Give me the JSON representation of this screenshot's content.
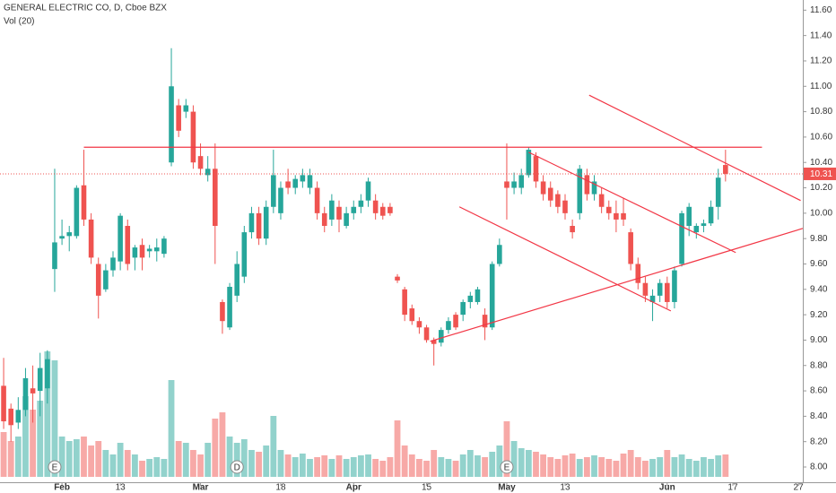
{
  "chart_data": {
    "type": "candlestick",
    "title": "GENERAL ELECTRIC CO, D, Cboe BZX",
    "up_color": "#26a69a",
    "down_color": "#ef5350",
    "line_color": "#f23645",
    "open": [
      8.64,
      8.46,
      8.35,
      8.45,
      8.62,
      8.6,
      8.62,
      9.56,
      9.8,
      9.82,
      9.82,
      10.22,
      9.95,
      9.6,
      9.4,
      9.55,
      9.62,
      9.9,
      9.65,
      9.75,
      9.7,
      9.7,
      9.68,
      10.4,
      10.85,
      10.8,
      10.8,
      10.45,
      10.3,
      10.35,
      9.3,
      9.1,
      9.35,
      9.5,
      9.85,
      10.0,
      9.8,
      10.05,
      10.0,
      10.25,
      10.2,
      10.25,
      10.2,
      10.2,
      10.0,
      9.95,
      10.05,
      9.9,
      10.0,
      10.05,
      10.1,
      10.1,
      10.05,
      10.05,
      9.5,
      9.4,
      9.25,
      9.15,
      9.1,
      9.0,
      8.98,
      9.08,
      9.2,
      9.2,
      9.3,
      9.3,
      9.2,
      9.1,
      9.6,
      10.25,
      10.2,
      10.2,
      10.3,
      10.45,
      10.25,
      10.2,
      10.15,
      10.1,
      9.9,
      10.0,
      10.3,
      10.15,
      10.15,
      10.05,
      10.0,
      10.0,
      9.85,
      9.6,
      9.45,
      9.3,
      9.35,
      9.45,
      9.3,
      9.6,
      9.9,
      9.85,
      9.9,
      9.92,
      10.05,
      10.38
    ],
    "high": [
      8.86,
      8.5,
      8.55,
      8.78,
      8.8,
      8.9,
      8.92,
      10.35,
      9.95,
      9.9,
      10.22,
      10.5,
      10.0,
      9.65,
      9.6,
      9.7,
      10.0,
      9.95,
      9.75,
      9.8,
      9.75,
      9.8,
      9.82,
      11.3,
      10.9,
      10.9,
      10.85,
      10.55,
      10.45,
      10.55,
      9.32,
      9.45,
      9.7,
      9.9,
      10.05,
      10.05,
      10.1,
      10.5,
      10.25,
      10.35,
      10.3,
      10.35,
      10.35,
      10.25,
      10.05,
      10.15,
      10.1,
      10.05,
      10.1,
      10.15,
      10.28,
      10.15,
      10.08,
      10.08,
      9.52,
      9.42,
      9.28,
      9.18,
      9.12,
      9.02,
      9.1,
      9.18,
      9.22,
      9.32,
      9.38,
      9.42,
      9.25,
      9.62,
      9.8,
      10.55,
      10.32,
      10.35,
      10.52,
      10.48,
      10.3,
      10.25,
      10.18,
      10.15,
      9.95,
      10.38,
      10.35,
      10.3,
      10.2,
      10.1,
      10.1,
      10.12,
      9.88,
      9.65,
      9.5,
      9.4,
      9.48,
      9.5,
      9.58,
      10.02,
      10.08,
      9.92,
      9.95,
      10.1,
      10.35,
      10.5
    ],
    "low": [
      8.3,
      8.2,
      8.3,
      8.4,
      8.35,
      8.4,
      8.5,
      9.38,
      9.75,
      9.7,
      9.8,
      9.9,
      9.6,
      9.17,
      9.38,
      9.5,
      9.55,
      9.55,
      9.55,
      9.55,
      9.65,
      9.62,
      9.65,
      10.37,
      10.6,
      10.75,
      10.35,
      10.3,
      10.25,
      9.6,
      9.05,
      9.08,
      9.3,
      9.45,
      9.8,
      9.75,
      9.75,
      10.0,
      9.95,
      10.15,
      10.15,
      10.2,
      10.15,
      9.95,
      9.85,
      9.9,
      9.85,
      9.88,
      9.95,
      10.0,
      10.05,
      9.95,
      9.95,
      9.98,
      9.45,
      9.15,
      9.12,
      9.05,
      8.98,
      8.8,
      8.95,
      9.05,
      9.08,
      9.15,
      9.25,
      9.28,
      9.0,
      9.08,
      9.58,
      9.95,
      10.15,
      10.15,
      10.28,
      10.2,
      10.1,
      10.05,
      10.0,
      9.95,
      9.8,
      9.95,
      10.1,
      10.1,
      10.0,
      9.95,
      9.85,
      9.9,
      9.55,
      9.4,
      9.3,
      9.15,
      9.3,
      9.25,
      9.25,
      9.58,
      9.82,
      9.8,
      9.85,
      9.9,
      9.95,
      10.25
    ],
    "close": [
      8.36,
      8.33,
      8.45,
      8.7,
      8.58,
      8.78,
      8.85,
      9.77,
      9.82,
      9.85,
      10.2,
      9.95,
      9.65,
      9.35,
      9.55,
      9.65,
      9.98,
      9.6,
      9.73,
      9.65,
      9.72,
      9.73,
      9.8,
      11.0,
      10.65,
      10.85,
      10.4,
      10.35,
      10.35,
      9.9,
      9.15,
      9.42,
      9.6,
      9.85,
      10.0,
      9.8,
      10.05,
      10.3,
      10.2,
      10.2,
      10.27,
      10.3,
      10.3,
      10.0,
      9.9,
      10.1,
      9.95,
      10.0,
      10.05,
      10.1,
      10.25,
      10.0,
      9.98,
      10.0,
      9.47,
      9.2,
      9.15,
      9.1,
      9.0,
      8.97,
      9.08,
      9.15,
      9.1,
      9.3,
      9.35,
      9.4,
      9.1,
      9.6,
      9.75,
      10.2,
      10.25,
      10.3,
      10.5,
      10.25,
      10.15,
      10.1,
      10.05,
      10.0,
      9.85,
      10.35,
      10.15,
      10.25,
      10.05,
      10.0,
      9.95,
      9.95,
      9.6,
      9.45,
      9.35,
      9.35,
      9.45,
      9.3,
      9.55,
      10.0,
      10.05,
      9.9,
      9.92,
      10.05,
      10.28,
      10.31
    ],
    "volume": {
      "name": "Vol (20)",
      "values": [
        50,
        40,
        45,
        90,
        75,
        85,
        140,
        130,
        45,
        40,
        42,
        45,
        35,
        40,
        30,
        25,
        38,
        30,
        25,
        18,
        20,
        22,
        20,
        108,
        40,
        38,
        30,
        25,
        38,
        65,
        72,
        45,
        38,
        42,
        30,
        28,
        35,
        68,
        30,
        25,
        22,
        26,
        20,
        22,
        24,
        20,
        24,
        20,
        22,
        24,
        25,
        20,
        18,
        22,
        63,
        35,
        25,
        20,
        18,
        30,
        22,
        20,
        18,
        25,
        30,
        24,
        22,
        28,
        35,
        62,
        40,
        32,
        30,
        28,
        25,
        22,
        20,
        24,
        26,
        20,
        22,
        24,
        22,
        20,
        18,
        26,
        30,
        22,
        18,
        20,
        22,
        30,
        22,
        25,
        20,
        18,
        22,
        20,
        24,
        25
      ],
      "vlim": [
        0,
        150
      ]
    },
    "xlim": [
      -0.5,
      109.6
    ],
    "xticks": [
      {
        "value": 8,
        "label": "Feb"
      },
      {
        "value": 16,
        "label": "13"
      },
      {
        "value": 27,
        "label": "Mar"
      },
      {
        "value": 38,
        "label": "18"
      },
      {
        "value": 48,
        "label": "Apr"
      },
      {
        "value": 58,
        "label": "15"
      },
      {
        "value": 69,
        "label": "May"
      },
      {
        "value": 77,
        "label": "13"
      },
      {
        "value": 91,
        "label": "Jun"
      },
      {
        "value": 100,
        "label": "17"
      },
      {
        "value": 109,
        "label": "27"
      }
    ],
    "ylim": [
      7.88,
      11.68
    ],
    "yticks": [
      {
        "value": 8,
        "label": "8.00"
      },
      {
        "value": 8.2,
        "label": "8.20"
      },
      {
        "value": 8.4,
        "label": "8.40"
      },
      {
        "value": 8.6,
        "label": "8.60"
      },
      {
        "value": 8.8,
        "label": "8.80"
      },
      {
        "value": 9,
        "label": "9.00"
      },
      {
        "value": 9.2,
        "label": "9.20"
      },
      {
        "value": 9.4,
        "label": "9.40"
      },
      {
        "value": 9.6,
        "label": "9.60"
      },
      {
        "value": 9.8,
        "label": "9.80"
      },
      {
        "value": 10,
        "label": "10.00"
      },
      {
        "value": 10.2,
        "label": "10.20"
      },
      {
        "value": 10.4,
        "label": "10.40"
      },
      {
        "value": 10.6,
        "label": "10.60"
      },
      {
        "value": 10.8,
        "label": "10.80"
      },
      {
        "value": 11,
        "label": "11.00"
      },
      {
        "value": 11.2,
        "label": "11.20"
      },
      {
        "value": 11.4,
        "label": "11.40"
      },
      {
        "value": 11.6,
        "label": "11.60"
      }
    ],
    "grid": false,
    "events": [
      {
        "label": "E",
        "index": 7
      },
      {
        "label": "D",
        "index": 32
      },
      {
        "label": "E",
        "index": 69
      }
    ],
    "trendlines": [
      [
        [
          11,
          10.52
        ],
        [
          104,
          10.52
        ]
      ],
      [
        [
          58.5,
          8.99
        ],
        [
          109.6,
          9.88
        ]
      ],
      [
        [
          62.5,
          10.05
        ],
        [
          91.5,
          9.23
        ]
      ],
      [
        [
          72,
          10.48
        ],
        [
          100.4,
          9.69
        ]
      ],
      [
        [
          80.3,
          10.93
        ],
        [
          109.3,
          10.1
        ]
      ]
    ]
  }
}
